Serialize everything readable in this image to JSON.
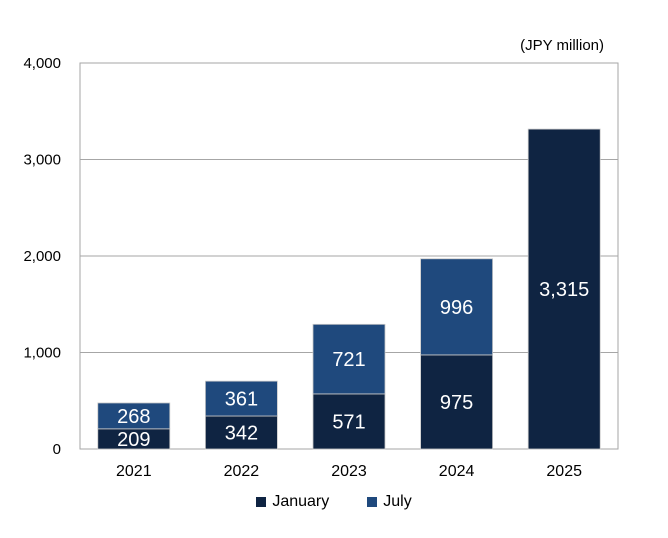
{
  "chart_data": {
    "type": "bar",
    "stacked": true,
    "unit_label": "(JPY million)",
    "categories": [
      "2021",
      "2022",
      "2023",
      "2024",
      "2025"
    ],
    "series": [
      {
        "name": "January",
        "color": "#0f2442",
        "values": [
          209,
          342,
          571,
          975,
          3315
        ],
        "labels": [
          "209",
          "342",
          "571",
          "975",
          "3,315"
        ]
      },
      {
        "name": "July",
        "color": "#1f497d",
        "values": [
          268,
          361,
          721,
          996,
          null
        ],
        "labels": [
          "268",
          "361",
          "721",
          "996",
          ""
        ]
      }
    ],
    "ylim": [
      0,
      4000
    ],
    "yticks": [
      0,
      1000,
      2000,
      3000,
      4000
    ],
    "ytick_labels": [
      "0",
      "1,000",
      "2,000",
      "3,000",
      "4,000"
    ],
    "grid": true,
    "legend_position": "bottom"
  }
}
